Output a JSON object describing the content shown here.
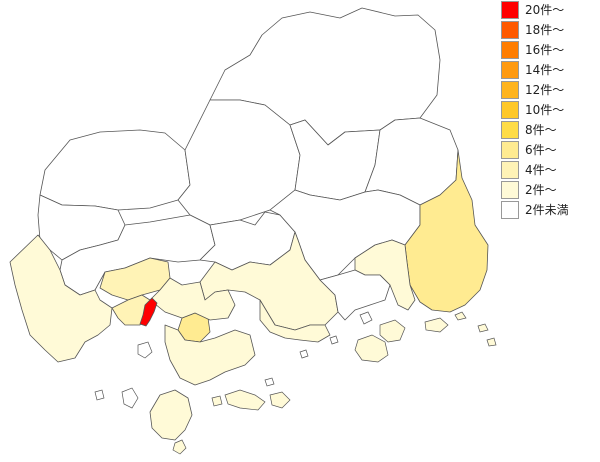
{
  "legend": [
    {
      "label": "20件～",
      "color": "#ff0000"
    },
    {
      "label": "18件～",
      "color": "#ff5a00"
    },
    {
      "label": "16件～",
      "color": "#ff7d00"
    },
    {
      "label": "14件～",
      "color": "#ff9a10"
    },
    {
      "label": "12件～",
      "color": "#ffb41e"
    },
    {
      "label": "10件～",
      "color": "#ffc828"
    },
    {
      "label": "8件～",
      "color": "#ffdc46"
    },
    {
      "label": "6件～",
      "color": "#ffeb91"
    },
    {
      "label": "4件～",
      "color": "#fff3b6"
    },
    {
      "label": "2件～",
      "color": "#fffad7"
    },
    {
      "label": "2件未満",
      "color": "#ffffff"
    }
  ],
  "regions": [
    {
      "name": "north-central",
      "bin": 10
    },
    {
      "name": "north-west",
      "bin": 10
    },
    {
      "name": "west-upper",
      "bin": 10
    },
    {
      "name": "north-east",
      "bin": 10
    },
    {
      "name": "east-upper",
      "bin": 10
    },
    {
      "name": "center-north",
      "bin": 10
    },
    {
      "name": "center-middle",
      "bin": 10
    },
    {
      "name": "east-middle",
      "bin": 10
    },
    {
      "name": "south-west",
      "bin": 9
    },
    {
      "name": "mid-west",
      "bin": 10
    },
    {
      "name": "center-south",
      "bin": 9
    },
    {
      "name": "east-south",
      "bin": 9
    },
    {
      "name": "far-east",
      "bin": 7
    },
    {
      "name": "mid-east-south",
      "bin": 9
    },
    {
      "name": "east-south-2",
      "bin": 10
    },
    {
      "name": "city-north",
      "bin": 8
    },
    {
      "name": "city-west",
      "bin": 8
    },
    {
      "name": "city-central",
      "bin": 0
    },
    {
      "name": "city-east",
      "bin": 7
    },
    {
      "name": "city-south",
      "bin": 9
    },
    {
      "name": "city-south-2",
      "bin": 9
    },
    {
      "name": "south-peninsula",
      "bin": 9
    },
    {
      "name": "islands-south",
      "bin": 9
    },
    {
      "name": "islands-east",
      "bin": 9
    }
  ]
}
